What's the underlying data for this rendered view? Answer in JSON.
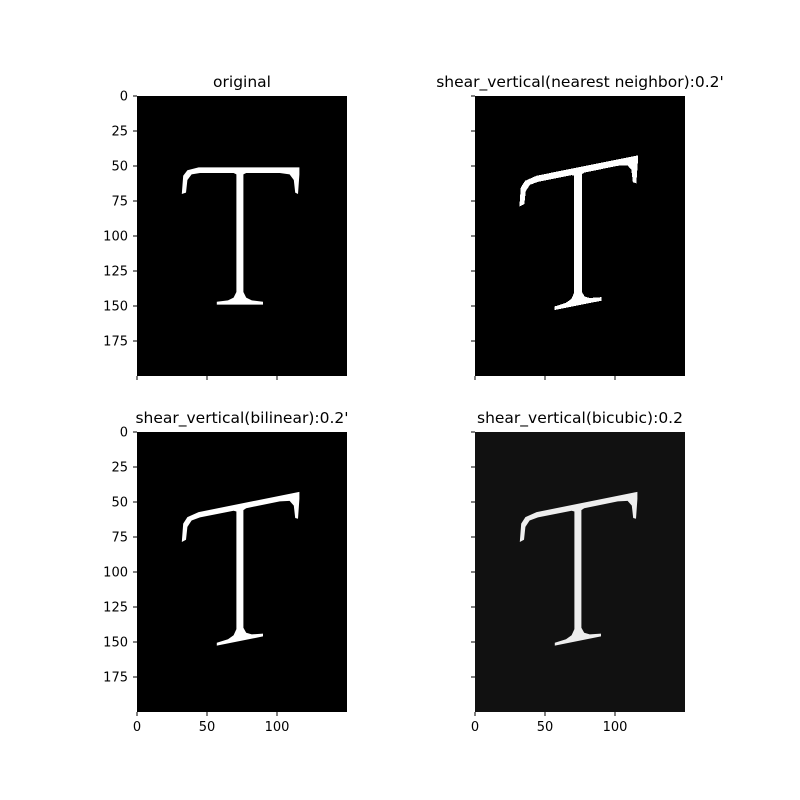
{
  "figure": {
    "background": "#ffffff"
  },
  "chart_data": [
    {
      "type": "image",
      "title": "original",
      "image_background": "#000000",
      "glyph": "T",
      "glyph_color": "#ffffff",
      "shear": 0,
      "interpolation": "none",
      "xlim": [
        0,
        150
      ],
      "ylim": [
        200,
        0
      ],
      "xticks": [
        0,
        50,
        100
      ],
      "xtick_labels": [
        "",
        "",
        ""
      ],
      "yticks": [
        0,
        25,
        50,
        75,
        100,
        125,
        150,
        175
      ],
      "ytick_labels": [
        "0",
        "25",
        "50",
        "75",
        "100",
        "125",
        "150",
        "175"
      ]
    },
    {
      "type": "image",
      "title": "shear_vertical(nearest neighbor):0.2'",
      "image_background": "#000000",
      "glyph": "T",
      "glyph_color": "#ffffff",
      "shear": 0.2,
      "interpolation": "nearest",
      "xlim": [
        0,
        150
      ],
      "ylim": [
        200,
        0
      ],
      "xticks": [
        0,
        50,
        100
      ],
      "xtick_labels": [
        "",
        "",
        ""
      ],
      "yticks": [
        0,
        25,
        50,
        75,
        100,
        125,
        150,
        175
      ],
      "ytick_labels": [
        "",
        "",
        "",
        "",
        "",
        "",
        "",
        ""
      ]
    },
    {
      "type": "image",
      "title": "shear_vertical(bilinear):0.2'",
      "image_background": "#000000",
      "glyph": "T",
      "glyph_color": "#ffffff",
      "shear": 0.2,
      "interpolation": "bilinear",
      "xlim": [
        0,
        150
      ],
      "ylim": [
        200,
        0
      ],
      "xticks": [
        0,
        50,
        100
      ],
      "xtick_labels": [
        "0",
        "50",
        "100"
      ],
      "yticks": [
        0,
        25,
        50,
        75,
        100,
        125,
        150,
        175
      ],
      "ytick_labels": [
        "0",
        "25",
        "50",
        "75",
        "100",
        "125",
        "150",
        "175"
      ]
    },
    {
      "type": "image",
      "title": "shear_vertical(bicubic):0.2",
      "image_background": "#111111",
      "glyph": "T",
      "glyph_color": "#eeeeee",
      "shear": 0.2,
      "interpolation": "bicubic",
      "xlim": [
        0,
        150
      ],
      "ylim": [
        200,
        0
      ],
      "xticks": [
        0,
        50,
        100
      ],
      "xtick_labels": [
        "0",
        "50",
        "100"
      ],
      "yticks": [
        0,
        25,
        50,
        75,
        100,
        125,
        150,
        175
      ],
      "ytick_labels": [
        "",
        "",
        "",
        "",
        "",
        "",
        "",
        ""
      ]
    }
  ]
}
